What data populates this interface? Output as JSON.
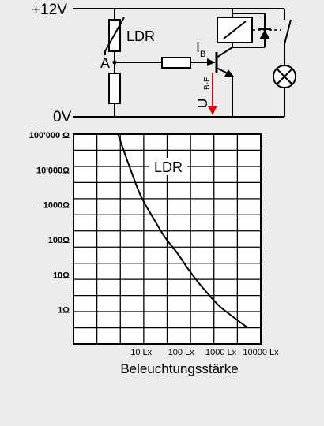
{
  "circuit": {
    "supply_label": "+12V",
    "ground_label": "0V",
    "ldr_label": "LDR",
    "node_a_label": "A",
    "base_current_label": "I",
    "base_current_sub": "B",
    "voltage_label": "U",
    "voltage_sub": "B-E",
    "arrow_color": "#e00000"
  },
  "chart_data": {
    "type": "line",
    "title": "LDR",
    "xlabel": "Beleuchtungsstärke",
    "ylabel": "",
    "x_scale": "log",
    "y_scale": "log",
    "x_ticks": [
      {
        "value": 10,
        "label": "10 Lx"
      },
      {
        "value": 100,
        "label": "100 Lx"
      },
      {
        "value": 1000,
        "label": "1000 Lx"
      },
      {
        "value": 10000,
        "label": "10000 Lx"
      }
    ],
    "y_ticks": [
      {
        "value": 100000,
        "label": "100'000 Ω"
      },
      {
        "value": 10000,
        "label": "10'000Ω"
      },
      {
        "value": 1000,
        "label": "1000Ω"
      },
      {
        "value": 100,
        "label": "100Ω"
      },
      {
        "value": 10,
        "label": "10Ω"
      },
      {
        "value": 1,
        "label": "1Ω"
      }
    ],
    "xlim": [
      0.2,
      10000
    ],
    "ylim": [
      0.1,
      100000
    ],
    "grid": true,
    "series": [
      {
        "x": [
          2.6,
          4,
          6,
          10,
          20,
          40,
          80,
          150,
          300,
          600,
          1000,
          2000,
          4500
        ],
        "y": [
          100000,
          25000,
          7000,
          1600,
          400,
          110,
          40,
          14,
          5,
          2,
          1.1,
          0.6,
          0.3
        ]
      }
    ]
  }
}
